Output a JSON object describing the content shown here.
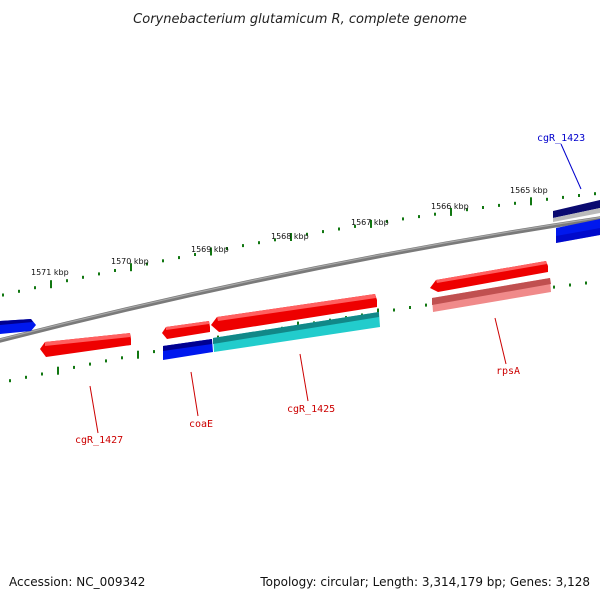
{
  "title": "Corynebacterium glutamicum R, complete genome",
  "accession": "Accession: NC_009342",
  "topology": "Topology: circular; Length: 3,314,179 bp; Genes: 3,128",
  "colors": {
    "backbone": "#808080",
    "tick": "#117711",
    "forward_gene": "#ee0000",
    "forward_gene_dark": "#c06060",
    "reverse_gene": "#0000ee",
    "reverse_gene_dark": "#000080",
    "forward_label": "#cc0000",
    "reverse_label": "#0000cc",
    "cyan_feature": "#22cccc"
  },
  "tick_labels": [
    "1565 kbp",
    "1566 kbp",
    "1567 kbp",
    "1568 kbp",
    "1569 kbp",
    "1570 kbp",
    "1571 kbp"
  ],
  "gene_labels": [
    {
      "text": "cgR_1423",
      "strand": "reverse"
    },
    {
      "text": "rpsA",
      "strand": "forward"
    },
    {
      "text": "cgR_1425",
      "strand": "forward"
    },
    {
      "text": "coaE",
      "strand": "forward"
    },
    {
      "text": "cgR_1427",
      "strand": "forward"
    }
  ]
}
